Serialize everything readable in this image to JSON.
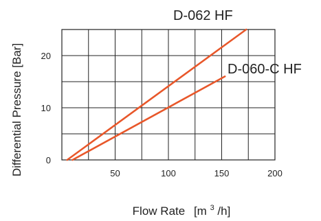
{
  "chart_data": {
    "type": "line",
    "title": "",
    "xlabel": "Flow Rate",
    "xlabel_unit_prefix": "[m",
    "xlabel_unit_sup": "3",
    "xlabel_unit_suffix": "/h]",
    "ylabel": "Differential Pressure [Bar]",
    "xlim": [
      0,
      200
    ],
    "ylim": [
      0,
      25
    ],
    "x_ticks": [
      50,
      100,
      150,
      200
    ],
    "x_tick_labels": [
      "50",
      "100",
      "150",
      "200"
    ],
    "y_ticks": [
      0,
      10,
      20
    ],
    "y_tick_labels": [
      "0",
      "10",
      "20"
    ],
    "grid": true,
    "legend": "none",
    "series": [
      {
        "name": "D-062 HF",
        "color": "#e8572a",
        "x": [
          5,
          173
        ],
        "y": [
          0,
          25
        ]
      },
      {
        "name": "D-060-C HF",
        "color": "#e8572a",
        "x": [
          10,
          153
        ],
        "y": [
          0,
          16
        ]
      }
    ]
  }
}
